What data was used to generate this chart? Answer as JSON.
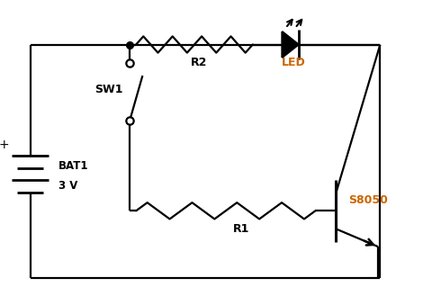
{
  "bg_color": "#ffffff",
  "line_color": "#000000",
  "led_label_color": "#cc6600",
  "s8050_label_color": "#cc6600",
  "figsize": [
    4.8,
    3.39
  ],
  "dpi": 100,
  "bat_label1": "BAT1",
  "bat_label2": "3 V",
  "r1_label": "R1",
  "r2_label": "R2",
  "led_label": "LED",
  "sw_label": "SW1",
  "tr_label": "S8050",
  "xlim": [
    0,
    10
  ],
  "ylim": [
    0,
    7
  ]
}
